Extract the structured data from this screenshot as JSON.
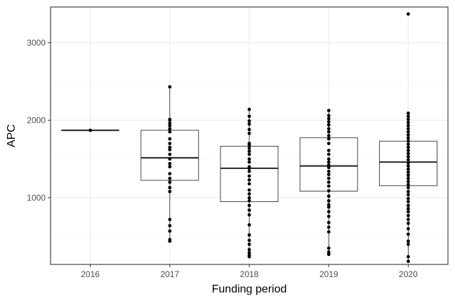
{
  "chart_data": {
    "type": "boxplot",
    "xlabel": "Funding period",
    "ylabel": "APC",
    "categories": [
      "2016",
      "2017",
      "2018",
      "2019",
      "2020"
    ],
    "y_ticks": [
      1000,
      2000,
      3000
    ],
    "y_tick_labels": [
      "1000",
      "2000",
      "3000"
    ],
    "ylim": [
      140,
      3460
    ],
    "grid": true,
    "legend": "none",
    "boxes": [
      {
        "category": "2016",
        "min": 1870,
        "q1": 1870,
        "median": 1870,
        "q3": 1870,
        "max": 1870
      },
      {
        "category": "2017",
        "min": 440,
        "q1": 1225,
        "median": 1515,
        "q3": 1870,
        "max": 2430
      },
      {
        "category": "2018",
        "min": 240,
        "q1": 950,
        "median": 1380,
        "q3": 1665,
        "max": 2140
      },
      {
        "category": "2019",
        "min": 270,
        "q1": 1085,
        "median": 1410,
        "q3": 1775,
        "max": 2125
      },
      {
        "category": "2020",
        "min": 180,
        "q1": 1155,
        "median": 1460,
        "q3": 1730,
        "max": 2090
      }
    ],
    "points": [
      {
        "category": "2016",
        "values": [
          1870
        ]
      },
      {
        "category": "2017",
        "values": [
          440,
          460,
          570,
          640,
          720,
          1080,
          1130,
          1200,
          1250,
          1310,
          1400,
          1440,
          1500,
          1560,
          1620,
          1650,
          1700,
          1760,
          1850,
          1890,
          1930,
          1960,
          2000,
          2010,
          2430
        ]
      },
      {
        "category": "2018",
        "values": [
          240,
          260,
          290,
          330,
          400,
          450,
          520,
          650,
          780,
          840,
          900,
          960,
          1000,
          1050,
          1100,
          1180,
          1230,
          1280,
          1340,
          1380,
          1400,
          1460,
          1500,
          1560,
          1600,
          1640,
          1680,
          1700,
          1830,
          1880,
          1950,
          1990,
          2050,
          2140
        ]
      },
      {
        "category": "2019",
        "values": [
          270,
          300,
          350,
          560,
          620,
          680,
          760,
          820,
          880,
          910,
          960,
          1020,
          1090,
          1150,
          1200,
          1250,
          1300,
          1340,
          1390,
          1420,
          1460,
          1500,
          1560,
          1610,
          1700,
          1760,
          1800,
          1850,
          1890,
          1940,
          1980,
          2020,
          2060,
          2125
        ]
      },
      {
        "category": "2020",
        "values": [
          180,
          240,
          400,
          440,
          530,
          600,
          670,
          720,
          770,
          820,
          860,
          900,
          950,
          990,
          1040,
          1080,
          1130,
          1170,
          1210,
          1250,
          1290,
          1330,
          1370,
          1410,
          1450,
          1490,
          1530,
          1570,
          1610,
          1650,
          1690,
          1730,
          1770,
          1810,
          1850,
          1890,
          1930,
          1970,
          2010,
          2050,
          2090,
          3370
        ]
      }
    ]
  }
}
